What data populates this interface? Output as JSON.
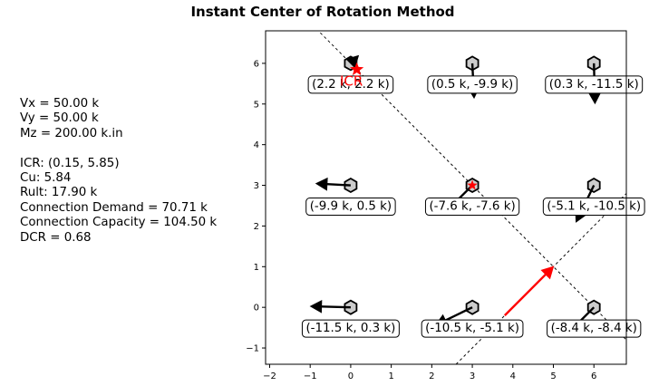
{
  "title": "Instant Center of Rotation Method",
  "info_lines": [
    "Vx = 50.00 k",
    "Vy = 50.00 k",
    "Mz = 200.00 k.in",
    "",
    "ICR: (0.15, 5.85)",
    "Cu: 5.84",
    "Rult: 17.90 k",
    "Connection Demand = 70.71 k",
    "Connection Capacity = 104.50 k",
    "DCR = 0.68"
  ],
  "chart_data": {
    "type": "scatter",
    "title": "Instant Center of Rotation Method",
    "xlabel": "",
    "ylabel": "",
    "xlim": [
      -2.1,
      6.8
    ],
    "ylim": [
      -1.4,
      6.8
    ],
    "xticks": [
      -2,
      -1,
      0,
      1,
      2,
      3,
      4,
      5,
      6
    ],
    "yticks": [
      -1,
      0,
      1,
      2,
      3,
      4,
      5,
      6
    ],
    "grid": false,
    "bolts": [
      {
        "x": 0,
        "y": 6,
        "force_label": "(2.2 k, 2.2 k)",
        "fx": 2.2,
        "fy": 2.2
      },
      {
        "x": 3,
        "y": 6,
        "force_label": "(0.5 k, -9.9 k)",
        "fx": 0.5,
        "fy": -9.9
      },
      {
        "x": 6,
        "y": 6,
        "force_label": "(0.3 k, -11.5 k)",
        "fx": 0.3,
        "fy": -11.5
      },
      {
        "x": 0,
        "y": 3,
        "force_label": "(-9.9 k, 0.5 k)",
        "fx": -9.9,
        "fy": 0.5
      },
      {
        "x": 3,
        "y": 3,
        "force_label": "(-7.6 k, -7.6 k)",
        "fx": -7.6,
        "fy": -7.6
      },
      {
        "x": 6,
        "y": 3,
        "force_label": "(-5.1 k, -10.5 k)",
        "fx": -5.1,
        "fy": -10.5
      },
      {
        "x": 0,
        "y": 0,
        "force_label": "(-11.5 k, 0.3 k)",
        "fx": -11.5,
        "fy": 0.3
      },
      {
        "x": 3,
        "y": 0,
        "force_label": "(-10.5 k, -5.1 k)",
        "fx": -10.5,
        "fy": -5.1
      },
      {
        "x": 6,
        "y": 0,
        "force_label": "(-8.4 k, -8.4 k)",
        "fx": -8.4,
        "fy": -8.4
      }
    ],
    "icr": {
      "x": 0.15,
      "y": 5.85,
      "label": "ICR",
      "color": "#ff0000"
    },
    "centroid": {
      "x": 3,
      "y": 3,
      "color": "#ff0000"
    },
    "applied_load": {
      "x0": 3.8,
      "y0": -0.2,
      "x1": 5.0,
      "y1": 1.0,
      "color": "#ff0000"
    },
    "load_line": {
      "x0": 2.6,
      "y0": -1.4,
      "x1": 6.8,
      "y1": 2.8
    },
    "rotation_line": {
      "x0": -0.75,
      "y0": 6.75,
      "x1": 6.8,
      "y1": -0.8
    }
  }
}
